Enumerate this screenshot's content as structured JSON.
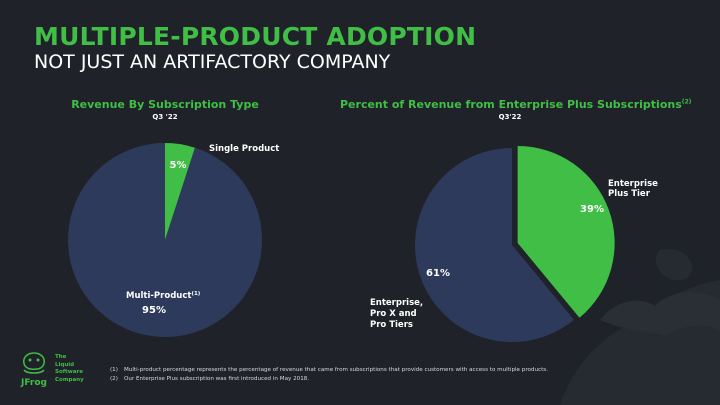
{
  "title": "MULTIPLE-PRODUCT ADOPTION",
  "subtitle": "NOT JUST AN ARTIFACTORY COMPANY",
  "colors": {
    "accent": "#40be46",
    "slice_dark": "#2e3a5c",
    "background": "#1f2329"
  },
  "chart_data": [
    {
      "type": "pie",
      "title": "Revenue By Subscription Type",
      "subtitle": "Q3 '22",
      "slices": [
        {
          "label": "Single Product",
          "value": 5,
          "value_label": "5%",
          "color": "#40be46"
        },
        {
          "label": "Multi-Product",
          "label_sup": "(1)",
          "value": 95,
          "value_label": "95%",
          "color": "#2e3a5c"
        }
      ]
    },
    {
      "type": "pie",
      "title": "Percent of Revenue from Enterprise Plus Subscriptions",
      "title_sup": "(2)",
      "subtitle": "Q3'22",
      "slices": [
        {
          "label_lines": [
            "Enterprise",
            "Plus Tier"
          ],
          "value": 39,
          "value_label": "39%",
          "color": "#40be46",
          "exploded": true
        },
        {
          "label_lines": [
            "Enterprise,",
            "Pro X and",
            "Pro Tiers"
          ],
          "value": 61,
          "value_label": "61%",
          "color": "#2e3a5c"
        }
      ]
    }
  ],
  "logo": {
    "brand": "JFrog",
    "tagline": [
      "The",
      "Liquid",
      "Software",
      "Company"
    ]
  },
  "footnotes": [
    {
      "num": "(1)",
      "text": "Multi-product percentage represents the percentage of revenue that came from subscriptions that provide customers with access to multiple products."
    },
    {
      "num": "(2)",
      "text": "Our Enterprise Plus subscription was first introduced in May 2018."
    }
  ]
}
